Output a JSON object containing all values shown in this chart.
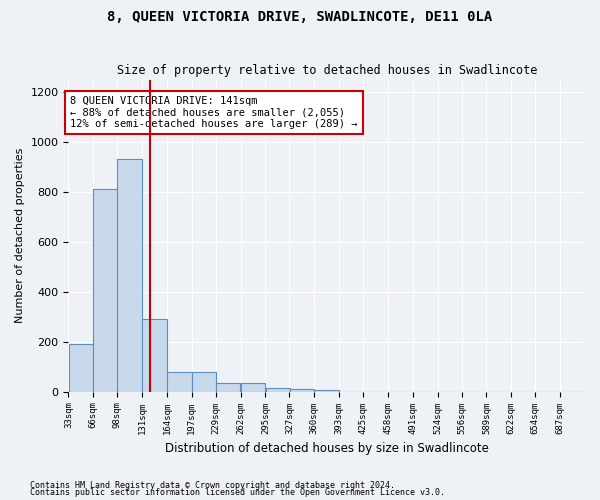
{
  "title": "8, QUEEN VICTORIA DRIVE, SWADLINCOTE, DE11 0LA",
  "subtitle": "Size of property relative to detached houses in Swadlincote",
  "xlabel": "Distribution of detached houses by size in Swadlincote",
  "ylabel": "Number of detached properties",
  "bar_color": "#c9d9ec",
  "bar_edge_color": "#5b8dc0",
  "background_color": "#eef2f7",
  "property_size": 141,
  "property_line_color": "#cc0000",
  "annotation_text": "8 QUEEN VICTORIA DRIVE: 141sqm\n← 88% of detached houses are smaller (2,055)\n12% of semi-detached houses are larger (289) →",
  "annotation_box_color": "white",
  "annotation_edge_color": "#cc0000",
  "footnote1": "Contains HM Land Registry data © Crown copyright and database right 2024.",
  "footnote2": "Contains public sector information licensed under the Open Government Licence v3.0.",
  "bin_edges": [
    33,
    66,
    98,
    131,
    164,
    197,
    229,
    262,
    295,
    327,
    360,
    393,
    425,
    458,
    491,
    524,
    556,
    589,
    622,
    654,
    687,
    720
  ],
  "bar_heights": [
    190,
    810,
    930,
    290,
    80,
    80,
    35,
    35,
    15,
    10,
    5,
    0,
    0,
    0,
    0,
    0,
    0,
    0,
    0,
    0,
    0
  ],
  "ylim": [
    0,
    1250
  ],
  "yticks": [
    0,
    200,
    400,
    600,
    800,
    1000,
    1200
  ],
  "tick_labels": [
    "33sqm",
    "66sqm",
    "98sqm",
    "131sqm",
    "164sqm",
    "197sqm",
    "229sqm",
    "262sqm",
    "295sqm",
    "327sqm",
    "360sqm",
    "393sqm",
    "425sqm",
    "458sqm",
    "491sqm",
    "524sqm",
    "556sqm",
    "589sqm",
    "622sqm",
    "654sqm",
    "687sqm"
  ]
}
